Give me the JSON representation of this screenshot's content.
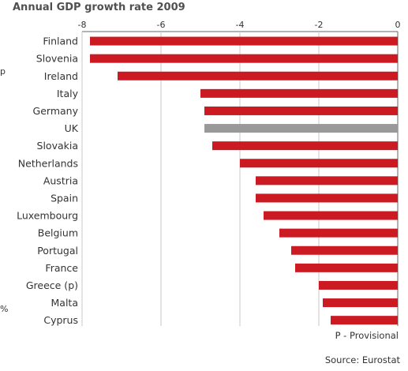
{
  "title": "Annual GDP growth rate 2009",
  "footnote": "P - Provisional",
  "source": "Source: Eurostat",
  "edge_marks": [
    "p",
    "%"
  ],
  "colors": {
    "bar": "#cc1a22",
    "highlight": "#999999",
    "grid": "#c8c8c8",
    "axis": "#666666"
  },
  "chart_data": {
    "type": "bar",
    "orientation": "horizontal",
    "title": "Annual GDP growth rate 2009",
    "categories": [
      "Finland",
      "Slovenia",
      "Ireland",
      "Italy",
      "Germany",
      "UK",
      "Slovakia",
      "Netherlands",
      "Austria",
      "Spain",
      "Luxembourg",
      "Belgium",
      "Portugal",
      "France",
      "Greece (p)",
      "Malta",
      "Cyprus"
    ],
    "values": [
      -7.8,
      -7.8,
      -7.1,
      -5.0,
      -4.9,
      -4.9,
      -4.7,
      -4.0,
      -3.6,
      -3.6,
      -3.4,
      -3.0,
      -2.7,
      -2.6,
      -2.0,
      -1.9,
      -1.7
    ],
    "highlight": "UK",
    "xlim": [
      -8,
      0
    ],
    "xticks": [
      -8,
      -6,
      -4,
      -2,
      0
    ],
    "grid": true
  }
}
